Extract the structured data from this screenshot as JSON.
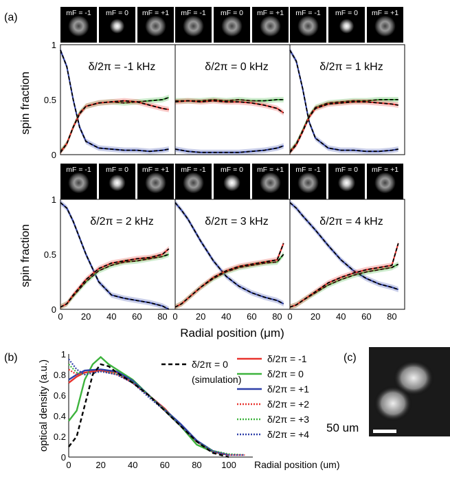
{
  "panel_labels": {
    "a": "(a)",
    "b": "(b)",
    "c": "(c)"
  },
  "image_labels": [
    "mF = -1",
    "mF = 0",
    "mF = +1"
  ],
  "image_center_brightness": [
    [
      0.15,
      0.75,
      0.15
    ],
    [
      0.15,
      0.04,
      0.15
    ],
    [
      0.15,
      0.75,
      0.15
    ],
    [
      0.15,
      0.9,
      0.15
    ],
    [
      0.15,
      0.92,
      0.15
    ],
    [
      0.15,
      0.95,
      0.15
    ]
  ],
  "colors": {
    "red": "#e8322d",
    "green": "#3cb33c",
    "blue": "#2d3fa8",
    "black": "#000000"
  },
  "scale_bar_label": "50 um",
  "chart_data": [
    {
      "type": "line",
      "title": "δ/2π = -1 kHz",
      "ylabel": "spin fraction",
      "xlim": [
        0,
        90
      ],
      "ylim": [
        0,
        1
      ],
      "yticks": [
        0,
        0.5,
        1
      ],
      "series": [
        {
          "x": [
            0,
            5,
            10,
            15,
            20,
            30,
            40,
            50,
            60,
            70,
            80,
            85
          ],
          "y": [
            0.95,
            0.8,
            0.5,
            0.25,
            0.12,
            0.06,
            0.05,
            0.04,
            0.04,
            0.03,
            0.04,
            0.05
          ]
        },
        {
          "x": [
            0,
            5,
            10,
            15,
            20,
            30,
            40,
            50,
            60,
            70,
            80,
            85
          ],
          "y": [
            0.03,
            0.1,
            0.25,
            0.38,
            0.44,
            0.47,
            0.48,
            0.47,
            0.48,
            0.49,
            0.5,
            0.52
          ]
        },
        {
          "x": [
            0,
            5,
            10,
            15,
            20,
            30,
            40,
            50,
            60,
            70,
            80,
            85
          ],
          "y": [
            0.02,
            0.1,
            0.25,
            0.37,
            0.44,
            0.47,
            0.48,
            0.49,
            0.48,
            0.45,
            0.42,
            0.41
          ]
        }
      ]
    },
    {
      "type": "line",
      "title": "δ/2π = 0 kHz",
      "xlim": [
        0,
        90
      ],
      "ylim": [
        0,
        1
      ],
      "series": [
        {
          "x": [
            0,
            5,
            10,
            20,
            30,
            40,
            50,
            60,
            70,
            80,
            85
          ],
          "y": [
            0.05,
            0.04,
            0.03,
            0.02,
            0.02,
            0.02,
            0.02,
            0.03,
            0.04,
            0.06,
            0.08
          ]
        },
        {
          "x": [
            0,
            10,
            20,
            30,
            40,
            50,
            60,
            70,
            80,
            85
          ],
          "y": [
            0.49,
            0.49,
            0.49,
            0.5,
            0.49,
            0.5,
            0.49,
            0.49,
            0.5,
            0.5
          ]
        },
        {
          "x": [
            0,
            10,
            20,
            30,
            40,
            50,
            60,
            70,
            80,
            85
          ],
          "y": [
            0.48,
            0.49,
            0.48,
            0.49,
            0.48,
            0.48,
            0.47,
            0.45,
            0.42,
            0.38
          ]
        }
      ]
    },
    {
      "type": "line",
      "title": "δ/2π = 1 kHz",
      "xlim": [
        0,
        90
      ],
      "ylim": [
        0,
        1
      ],
      "series": [
        {
          "x": [
            0,
            5,
            10,
            15,
            20,
            30,
            40,
            50,
            60,
            70,
            80,
            85
          ],
          "y": [
            0.95,
            0.85,
            0.6,
            0.3,
            0.15,
            0.06,
            0.04,
            0.04,
            0.03,
            0.03,
            0.04,
            0.05
          ]
        },
        {
          "x": [
            0,
            5,
            10,
            15,
            20,
            30,
            40,
            50,
            60,
            70,
            80,
            85
          ],
          "y": [
            0.03,
            0.1,
            0.22,
            0.35,
            0.43,
            0.47,
            0.48,
            0.49,
            0.49,
            0.5,
            0.5,
            0.5
          ]
        },
        {
          "x": [
            0,
            5,
            10,
            15,
            20,
            30,
            40,
            50,
            60,
            70,
            80,
            85
          ],
          "y": [
            0.02,
            0.09,
            0.21,
            0.34,
            0.42,
            0.46,
            0.47,
            0.48,
            0.48,
            0.47,
            0.46,
            0.45
          ]
        }
      ]
    },
    {
      "type": "line",
      "title": "δ/2π = 2 kHz",
      "ylabel": "spin fraction",
      "xlim": [
        0,
        90
      ],
      "ylim": [
        0,
        1
      ],
      "xticks": [
        0,
        20,
        40,
        60,
        80
      ],
      "yticks": [
        0,
        0.5,
        1
      ],
      "series": [
        {
          "x": [
            0,
            5,
            10,
            20,
            30,
            40,
            50,
            60,
            70,
            80,
            85
          ],
          "y": [
            0.97,
            0.92,
            0.8,
            0.5,
            0.25,
            0.13,
            0.1,
            0.08,
            0.06,
            0.03,
            0.0
          ]
        },
        {
          "x": [
            0,
            5,
            10,
            20,
            30,
            40,
            50,
            60,
            70,
            80,
            85
          ],
          "y": [
            0.02,
            0.05,
            0.12,
            0.25,
            0.35,
            0.4,
            0.43,
            0.44,
            0.46,
            0.48,
            0.5
          ]
        },
        {
          "x": [
            0,
            5,
            10,
            20,
            30,
            40,
            50,
            60,
            70,
            80,
            85
          ],
          "y": [
            0.02,
            0.05,
            0.13,
            0.27,
            0.37,
            0.42,
            0.44,
            0.46,
            0.47,
            0.5,
            0.55
          ]
        }
      ]
    },
    {
      "type": "line",
      "title": "δ/2π = 3 kHz",
      "xlim": [
        0,
        90
      ],
      "ylim": [
        0,
        1
      ],
      "xticks": [
        0,
        20,
        40,
        60,
        80
      ],
      "series": [
        {
          "x": [
            0,
            5,
            10,
            20,
            30,
            40,
            50,
            60,
            70,
            80,
            85
          ],
          "y": [
            0.97,
            0.9,
            0.82,
            0.62,
            0.44,
            0.3,
            0.21,
            0.15,
            0.11,
            0.08,
            0.05
          ]
        },
        {
          "x": [
            0,
            5,
            10,
            20,
            30,
            40,
            50,
            60,
            70,
            80,
            85
          ],
          "y": [
            0.02,
            0.05,
            0.1,
            0.2,
            0.28,
            0.34,
            0.38,
            0.4,
            0.42,
            0.43,
            0.5
          ]
        },
        {
          "x": [
            0,
            5,
            10,
            20,
            30,
            40,
            50,
            60,
            70,
            80,
            85
          ],
          "y": [
            0.02,
            0.05,
            0.1,
            0.2,
            0.29,
            0.35,
            0.39,
            0.41,
            0.43,
            0.45,
            0.6
          ]
        }
      ]
    },
    {
      "type": "line",
      "title": "δ/2π = 4 kHz",
      "xlim": [
        0,
        90
      ],
      "ylim": [
        0,
        1
      ],
      "xticks": [
        0,
        20,
        40,
        60,
        80
      ],
      "series": [
        {
          "x": [
            0,
            5,
            10,
            20,
            30,
            40,
            50,
            60,
            70,
            80,
            85
          ],
          "y": [
            0.97,
            0.92,
            0.85,
            0.72,
            0.58,
            0.45,
            0.35,
            0.28,
            0.23,
            0.2,
            0.18
          ]
        },
        {
          "x": [
            0,
            5,
            10,
            20,
            30,
            40,
            50,
            60,
            70,
            80,
            85
          ],
          "y": [
            0.02,
            0.04,
            0.08,
            0.15,
            0.22,
            0.27,
            0.31,
            0.34,
            0.36,
            0.38,
            0.41
          ]
        },
        {
          "x": [
            0,
            5,
            10,
            20,
            30,
            40,
            50,
            60,
            70,
            80,
            85
          ],
          "y": [
            0.02,
            0.04,
            0.08,
            0.16,
            0.24,
            0.29,
            0.33,
            0.36,
            0.38,
            0.4,
            0.6
          ]
        }
      ]
    },
    {
      "type": "line",
      "ylabel": "optical density (a.u.)",
      "xlabel": "Radial position (um)",
      "xlim": [
        0,
        115
      ],
      "ylim": [
        0,
        1
      ],
      "xticks": [
        0,
        20,
        40,
        60,
        80,
        100
      ],
      "yticks": [
        0,
        0.2,
        0.4,
        0.6,
        0.8,
        1
      ],
      "legend": [
        {
          "name": "δ/2π = 0",
          "sub": "(simulation)"
        },
        {
          "name": "δ/2π = -1"
        },
        {
          "name": "δ/2π = 0"
        },
        {
          "name": "δ/2π = +1"
        },
        {
          "name": "δ/2π = +2"
        },
        {
          "name": "δ/2π = +3"
        },
        {
          "name": "δ/2π = +4"
        }
      ],
      "series": [
        {
          "x": [
            0,
            5,
            10,
            15,
            20,
            25,
            30,
            40,
            50,
            60,
            70,
            80,
            90,
            100
          ],
          "y": [
            0.1,
            0.2,
            0.5,
            0.8,
            0.9,
            0.88,
            0.82,
            0.72,
            0.6,
            0.45,
            0.3,
            0.15,
            0.04,
            0.0
          ]
        },
        {
          "x": [
            0,
            5,
            10,
            20,
            30,
            40,
            50,
            60,
            70,
            80,
            90,
            100
          ],
          "y": [
            0.72,
            0.78,
            0.82,
            0.84,
            0.82,
            0.72,
            0.6,
            0.47,
            0.3,
            0.15,
            0.05,
            0.02
          ]
        },
        {
          "x": [
            0,
            5,
            10,
            15,
            20,
            25,
            30,
            40,
            50,
            60,
            70,
            80,
            90,
            100
          ],
          "y": [
            0.35,
            0.45,
            0.75,
            0.9,
            0.97,
            0.9,
            0.85,
            0.75,
            0.6,
            0.45,
            0.3,
            0.12,
            0.05,
            0.02
          ]
        },
        {
          "x": [
            0,
            5,
            10,
            20,
            30,
            40,
            50,
            60,
            70,
            80,
            90,
            100
          ],
          "y": [
            0.75,
            0.8,
            0.84,
            0.85,
            0.83,
            0.74,
            0.6,
            0.46,
            0.32,
            0.16,
            0.06,
            0.02
          ]
        },
        {
          "x": [
            0,
            5,
            10,
            20,
            30,
            40,
            50,
            60,
            70,
            80,
            90,
            100,
            110
          ],
          "y": [
            0.85,
            0.8,
            0.82,
            0.84,
            0.8,
            0.72,
            0.6,
            0.45,
            0.3,
            0.15,
            0.05,
            0.02,
            0.02
          ]
        },
        {
          "x": [
            0,
            5,
            10,
            20,
            30,
            40,
            50,
            60,
            70,
            80,
            90,
            100,
            110
          ],
          "y": [
            0.9,
            0.82,
            0.8,
            0.83,
            0.81,
            0.73,
            0.6,
            0.46,
            0.3,
            0.15,
            0.06,
            0.03,
            0.02
          ]
        },
        {
          "x": [
            0,
            5,
            10,
            20,
            30,
            40,
            50,
            60,
            70,
            80,
            90,
            100,
            110
          ],
          "y": [
            0.95,
            0.85,
            0.8,
            0.83,
            0.8,
            0.72,
            0.58,
            0.45,
            0.3,
            0.15,
            0.05,
            0.02,
            0.02
          ]
        }
      ]
    }
  ],
  "x_axis_label_a": "Radial position (μm)"
}
